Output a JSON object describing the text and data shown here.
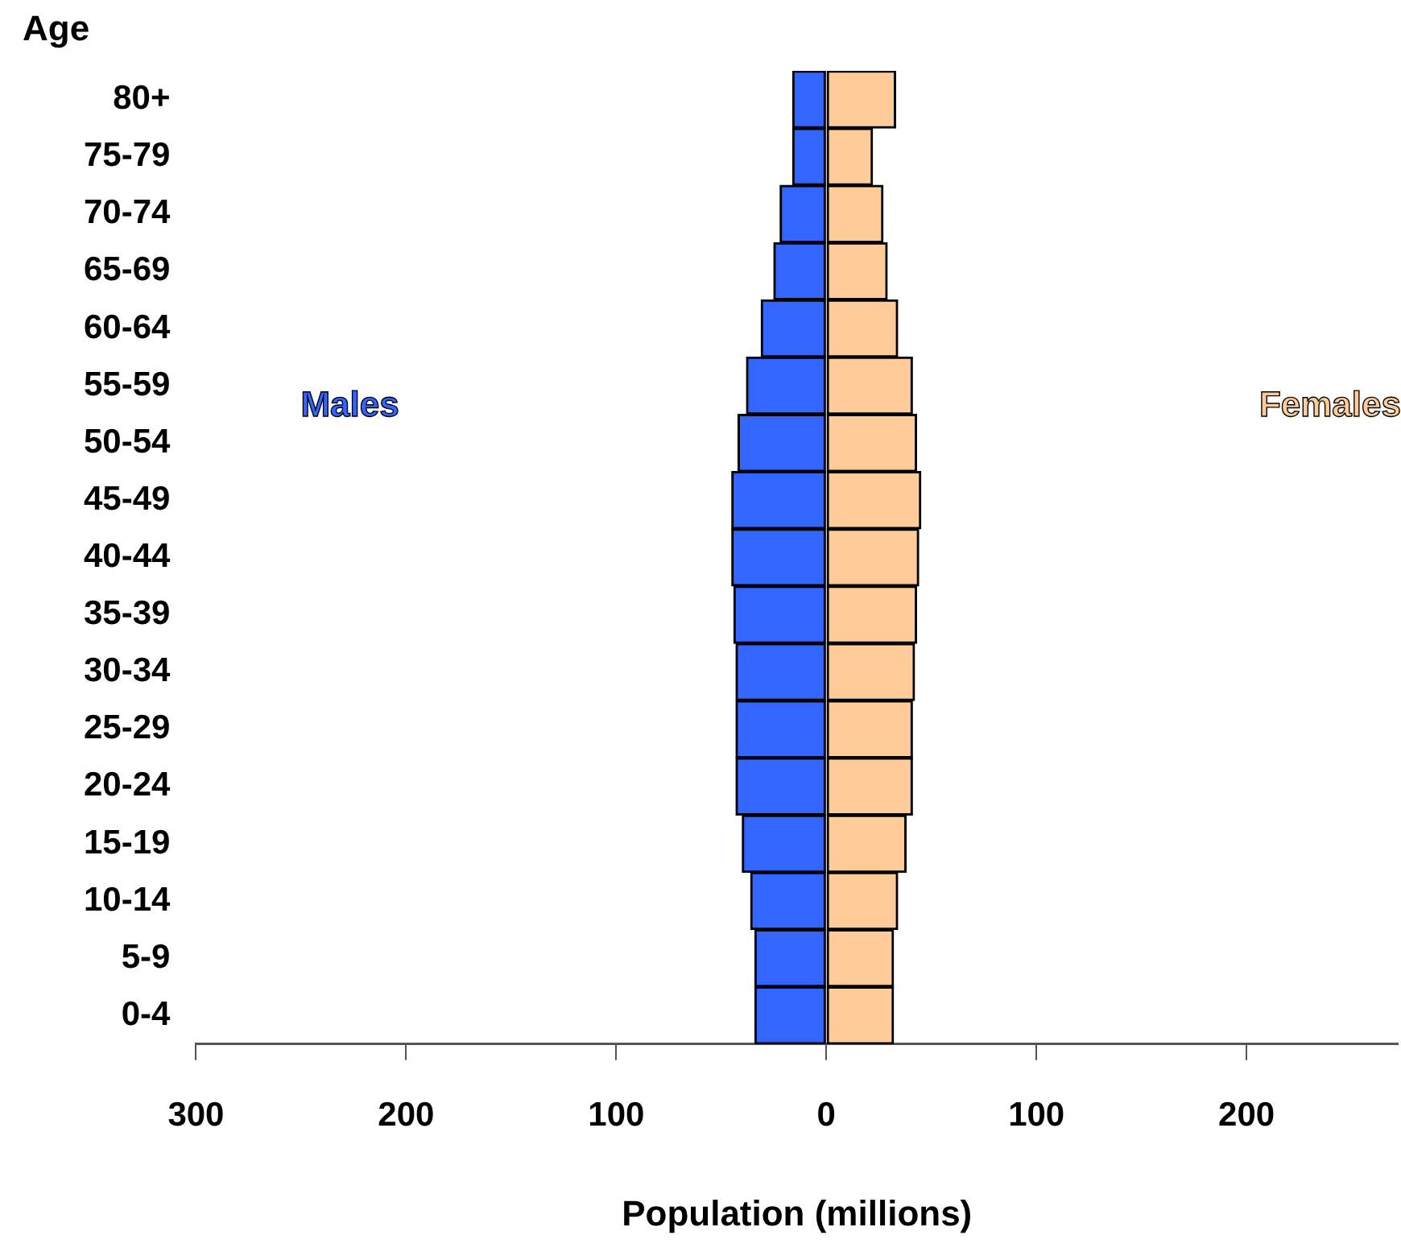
{
  "chart_data": {
    "type": "bar",
    "orientation": "horizontal",
    "stacked": true,
    "xlabel": "Population (millions)",
    "ylabel": "Age",
    "categories": [
      "80+",
      "75-79",
      "70-74",
      "65-69",
      "60-64",
      "55-59",
      "50-54",
      "45-49",
      "40-44",
      "35-39",
      "30-34",
      "25-29",
      "20-24",
      "15-19",
      "10-14",
      "5-9",
      "0-4"
    ],
    "series": [
      {
        "name": "Males",
        "color": "#3366ff",
        "values": [
          -16,
          -16,
          -22,
          -25,
          -31,
          -38,
          -42,
          -45,
          -45,
          -44,
          -43,
          -43,
          -43,
          -40,
          -36,
          -34,
          -34
        ]
      },
      {
        "name": "Females",
        "color": "#ffcc99",
        "values": [
          33,
          22,
          27,
          29,
          34,
          41,
          43,
          45,
          44,
          43,
          42,
          41,
          41,
          38,
          34,
          32,
          32
        ]
      }
    ],
    "xlim": [
      -300,
      272
    ],
    "xticks": [
      {
        "value": -300,
        "label": "300"
      },
      {
        "value": -200,
        "label": "200"
      },
      {
        "value": -100,
        "label": "100"
      },
      0,
      100,
      200
    ],
    "grid": false,
    "legend": false
  }
}
